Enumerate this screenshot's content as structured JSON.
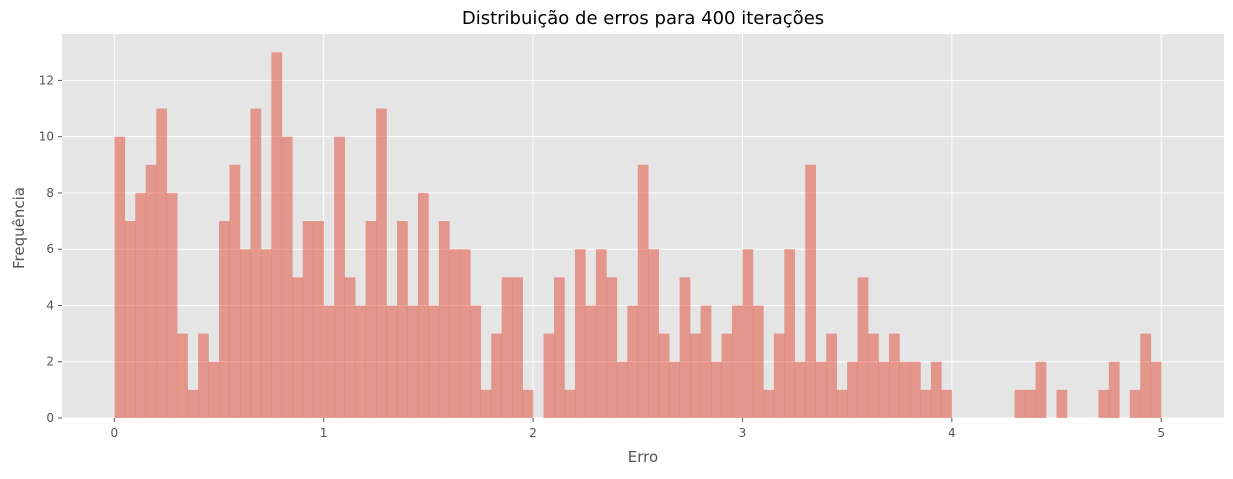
{
  "chart_data": {
    "type": "bar",
    "title": "Distribuição de erros para 400 iterações",
    "xlabel": "Erro",
    "ylabel": "Frequência",
    "xlim": [
      -0.25,
      5.3
    ],
    "ylim": [
      0,
      13.65
    ],
    "bin_start": 0.0,
    "bin_width": 0.05,
    "xticks": [
      0,
      1,
      2,
      3,
      4,
      5
    ],
    "yticks": [
      0,
      2,
      4,
      6,
      8,
      10,
      12
    ],
    "grid": true,
    "bar_color": "#E24A33",
    "bar_alpha": 0.5,
    "background_color": "#E5E5E5",
    "grid_color": "#FFFFFF",
    "values": [
      10,
      7,
      8,
      9,
      11,
      8,
      3,
      1,
      3,
      2,
      7,
      9,
      6,
      11,
      6,
      13,
      10,
      5,
      7,
      7,
      4,
      10,
      5,
      4,
      7,
      11,
      4,
      7,
      4,
      8,
      4,
      7,
      6,
      6,
      4,
      1,
      3,
      5,
      5,
      1,
      0,
      3,
      5,
      1,
      6,
      4,
      6,
      5,
      2,
      4,
      9,
      6,
      3,
      2,
      5,
      3,
      4,
      2,
      3,
      4,
      6,
      4,
      1,
      3,
      6,
      2,
      9,
      2,
      3,
      1,
      2,
      5,
      3,
      2,
      3,
      2,
      2,
      1,
      2,
      1,
      0,
      0,
      0,
      0,
      0,
      0,
      1,
      1,
      2,
      0,
      1,
      0,
      0,
      0,
      1,
      2,
      0,
      1,
      3,
      2
    ]
  }
}
